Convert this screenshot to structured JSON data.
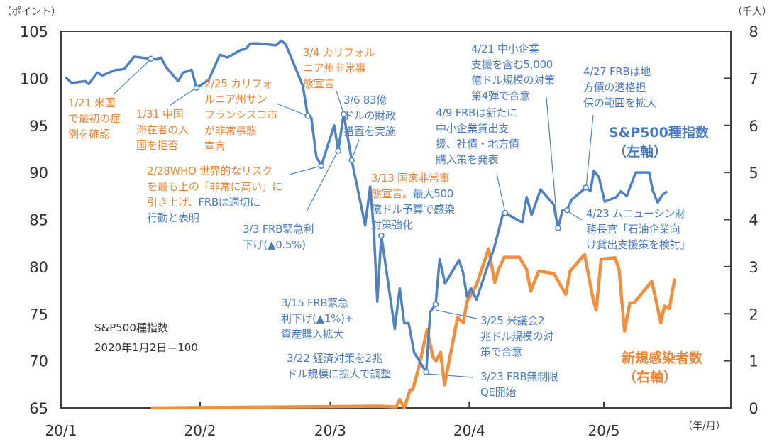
{
  "colors": {
    "sp500": "#4F81C7",
    "cases": "#F28E3C",
    "text_blue": "#4A7CC2",
    "text_orange": "#EE8535",
    "axis": "#404040"
  },
  "units": {
    "left": "（ポイント）",
    "right": "（千人）",
    "x": "（年/月）"
  },
  "series_labels": {
    "sp500": [
      "S&P500種指数",
      "（左軸）"
    ],
    "cases": [
      "新規感染者数",
      "（右軸）"
    ]
  },
  "note": [
    "S&P500種指数",
    "2020年1月2日＝100"
  ],
  "annotations": [
    {
      "id": "a0121",
      "marker_day": 20,
      "lines": [
        [
          {
            "t": "1/21 米国",
            "c": "orange"
          }
        ],
        [
          {
            "t": "で最初の症",
            "c": "orange"
          }
        ],
        [
          {
            "t": "例を確認",
            "c": "orange"
          }
        ]
      ]
    },
    {
      "id": "a0131",
      "marker_day": 30.2,
      "lines": [
        [
          {
            "t": "1/31 中国",
            "c": "orange"
          }
        ],
        [
          {
            "t": "滞在者の入",
            "c": "orange"
          }
        ],
        [
          {
            "t": "国を拒否",
            "c": "orange"
          }
        ]
      ]
    },
    {
      "id": "a0225",
      "marker_day": 55,
      "lines": [
        [
          {
            "t": "2/25 カリフォ",
            "c": "orange"
          }
        ],
        [
          {
            "t": "ルニア州サン",
            "c": "orange"
          }
        ],
        [
          {
            "t": "フランシスコ市",
            "c": "orange"
          }
        ],
        [
          {
            "t": "が非常事態",
            "c": "orange"
          }
        ],
        [
          {
            "t": "宣言",
            "c": "orange"
          }
        ]
      ]
    },
    {
      "id": "a0228",
      "marker_day": 58,
      "lines": [
        [
          {
            "t": "2/28WHO 世界的なリスク",
            "c": "orange"
          }
        ],
        [
          {
            "t": "を最も上の「非常に高い」に",
            "c": "orange"
          }
        ],
        [
          {
            "t": "引き上げ、",
            "c": "orange"
          },
          {
            "t": "FRBは適切に",
            "c": "blue"
          }
        ],
        [
          {
            "t": "行動と表明",
            "c": "blue"
          }
        ]
      ]
    },
    {
      "id": "a0303",
      "marker_day": 61.8,
      "lines": [
        [
          {
            "t": "3/3 FRB緊急利",
            "c": "blue"
          }
        ],
        [
          {
            "t": "下げ(▲0.5%)",
            "c": "blue"
          }
        ]
      ]
    },
    {
      "id": "a0304",
      "marker_day": 63,
      "lines": [
        [
          {
            "t": "3/4 カリフォル",
            "c": "orange"
          }
        ],
        [
          {
            "t": "ニア州非常事",
            "c": "orange"
          }
        ],
        [
          {
            "t": "態宣言",
            "c": "orange"
          }
        ]
      ]
    },
    {
      "id": "a0306",
      "marker_day": 64.8,
      "lines": [
        [
          {
            "t": "3/6 83億",
            "c": "blue"
          }
        ],
        [
          {
            "t": "ドルの財政",
            "c": "blue"
          }
        ],
        [
          {
            "t": "措置を実施",
            "c": "blue"
          }
        ]
      ]
    },
    {
      "id": "a0313",
      "marker_day": 71.4,
      "lines": [
        [
          {
            "t": "3/13 国家非常事",
            "c": "orange"
          }
        ],
        [
          {
            "t": "態宣言。",
            "c": "orange"
          },
          {
            "t": "最大500",
            "c": "blue"
          }
        ],
        [
          {
            "t": "億ドル予算で感染",
            "c": "blue"
          }
        ],
        [
          {
            "t": "対策強化",
            "c": "blue"
          }
        ]
      ]
    },
    {
      "id": "a0315",
      "lines": [
        [
          {
            "t": "3/15 FRB緊急",
            "c": "blue"
          }
        ],
        [
          {
            "t": "利下げ(▲1%)+",
            "c": "blue"
          }
        ],
        [
          {
            "t": "資産購入拡大",
            "c": "blue"
          }
        ]
      ]
    },
    {
      "id": "a0322",
      "lines": [
        [
          {
            "t": "3/22 経済対策を2兆",
            "c": "blue"
          }
        ],
        [
          {
            "t": "ドル規模に拡大で調整",
            "c": "blue"
          }
        ]
      ]
    },
    {
      "id": "a0323",
      "marker_day": 81.4,
      "lines": [
        [
          {
            "t": "3/23 FRB無制限",
            "c": "blue"
          }
        ],
        [
          {
            "t": "QE開始",
            "c": "blue"
          }
        ]
      ]
    },
    {
      "id": "a0325",
      "marker_day": 83.5,
      "lines": [
        [
          {
            "t": "3/25 米議会2",
            "c": "blue"
          }
        ],
        [
          {
            "t": "兆ドル規模の対",
            "c": "blue"
          }
        ],
        [
          {
            "t": "策で合意",
            "c": "blue"
          }
        ]
      ]
    },
    {
      "id": "a0409",
      "marker_day": 99,
      "lines": [
        [
          {
            "t": "4/9 FRBは新たに",
            "c": "blue"
          }
        ],
        [
          {
            "t": "中小企業貸出支",
            "c": "blue"
          }
        ],
        [
          {
            "t": "援、社債・地方債",
            "c": "blue"
          }
        ],
        [
          {
            "t": "購入策を発表",
            "c": "blue"
          }
        ]
      ]
    },
    {
      "id": "a0421",
      "marker_day": 110.8,
      "lines": [
        [
          {
            "t": "4/21 中小企業",
            "c": "blue"
          }
        ],
        [
          {
            "t": "支援を含む5,000",
            "c": "blue"
          }
        ],
        [
          {
            "t": "億ドル規模の対策",
            "c": "blue"
          }
        ],
        [
          {
            "t": "第4弾で合意",
            "c": "blue"
          }
        ]
      ]
    },
    {
      "id": "a0423",
      "marker_day": 112.8,
      "lines": [
        [
          {
            "t": "4/23 ムニューシン財",
            "c": "blue"
          }
        ],
        [
          {
            "t": "務長官「石油企業向",
            "c": "blue"
          }
        ],
        [
          {
            "t": "け貸出支援策を検討」",
            "c": "blue"
          }
        ]
      ]
    },
    {
      "id": "a0427",
      "marker_day": 117,
      "lines": [
        [
          {
            "t": "4/27 FRBは地",
            "c": "blue"
          }
        ],
        [
          {
            "t": "方債の適格担",
            "c": "blue"
          }
        ],
        [
          {
            "t": "保の範囲を拡大",
            "c": "blue"
          }
        ]
      ]
    }
  ],
  "chart_data": {
    "type": "line",
    "title": "",
    "xlabel": "（年/月）",
    "x_unit": "days since 2020-01-01",
    "x_ticks": [
      {
        "day": 0,
        "label": "20/1"
      },
      {
        "day": 31,
        "label": "20/2"
      },
      {
        "day": 60,
        "label": "20/3"
      },
      {
        "day": 91,
        "label": "20/4"
      },
      {
        "day": 121,
        "label": "20/5"
      }
    ],
    "xlim": [
      0,
      149
    ],
    "y_left": {
      "label": "（ポイント）",
      "ylim": [
        65,
        105
      ],
      "ticks": [
        65,
        70,
        75,
        80,
        85,
        90,
        95,
        100,
        105
      ]
    },
    "y_right": {
      "label": "（千人）",
      "ylim": [
        0,
        8
      ],
      "ticks": [
        0,
        1,
        2,
        3,
        4,
        5,
        6,
        7,
        8
      ]
    },
    "grid": false,
    "series": [
      {
        "name": "S&P500種指数（左軸）",
        "axis": "left",
        "points": [
          [
            1,
            100.1
          ],
          [
            2.4,
            99.5
          ],
          [
            5.4,
            99.7
          ],
          [
            6.2,
            99.4
          ],
          [
            8.1,
            100.6
          ],
          [
            9.2,
            100.3
          ],
          [
            12.2,
            100.9
          ],
          [
            13,
            100.9
          ],
          [
            14.1,
            101
          ],
          [
            16.3,
            102.3
          ],
          [
            21.2,
            102
          ],
          [
            22.3,
            102.2
          ],
          [
            23.4,
            101.2
          ],
          [
            26.1,
            99.7
          ],
          [
            27.2,
            100.6
          ],
          [
            29.1,
            100.9
          ],
          [
            30.2,
            99.0
          ],
          [
            32.9,
            99.8
          ],
          [
            35.4,
            102.5
          ],
          [
            37.1,
            102.2
          ],
          [
            40,
            103
          ],
          [
            41.1,
            103.1
          ],
          [
            42.2,
            103.7
          ],
          [
            44.1,
            103.7
          ],
          [
            47.9,
            103.5
          ],
          [
            49.1,
            104
          ],
          [
            50.1,
            103.6
          ],
          [
            53.9,
            99.2
          ],
          [
            55,
            96
          ],
          [
            55.8,
            95.8
          ],
          [
            56.9,
            91.7
          ],
          [
            58,
            90.7
          ],
          [
            60.9,
            95
          ],
          [
            61.8,
            92.3
          ],
          [
            63,
            96.2
          ],
          [
            64.8,
            91.3
          ],
          [
            67.8,
            84.4
          ],
          [
            68.9,
            88.5
          ],
          [
            69.7,
            84.1
          ],
          [
            70.5,
            76.3
          ],
          [
            71.4,
            83.3
          ],
          [
            74.4,
            73.4
          ],
          [
            75.5,
            77.7
          ],
          [
            76.5,
            74
          ],
          [
            77.5,
            74
          ],
          [
            78.7,
            70.9
          ],
          [
            81.4,
            68.8
          ],
          [
            82.3,
            75.2
          ],
          [
            83.5,
            76
          ],
          [
            84.4,
            80.8
          ],
          [
            85.6,
            78.2
          ],
          [
            88.7,
            80.7
          ],
          [
            89.6,
            79.4
          ],
          [
            90.5,
            76.8
          ],
          [
            91.4,
            77.7
          ],
          [
            92.6,
            76.5
          ],
          [
            95,
            79.9
          ],
          [
            96.5,
            81.9
          ],
          [
            98.5,
            85.6
          ],
          [
            99,
            85.7
          ],
          [
            102.8,
            84.7
          ],
          [
            103.8,
            87.4
          ],
          [
            104.9,
            85.5
          ],
          [
            106.9,
            88.2
          ],
          [
            109.8,
            86.6
          ],
          [
            110.8,
            84.1
          ],
          [
            111.8,
            86
          ],
          [
            112.8,
            86
          ],
          [
            113.8,
            87.1
          ],
          [
            117,
            88.4
          ],
          [
            118,
            88
          ],
          [
            118.8,
            90.2
          ],
          [
            119.9,
            89.5
          ],
          [
            121.2,
            86.9
          ],
          [
            123.8,
            87.4
          ],
          [
            124.8,
            88
          ],
          [
            126.1,
            87.5
          ],
          [
            128.1,
            90
          ],
          [
            131.1,
            90
          ],
          [
            131.9,
            88.1
          ],
          [
            133,
            86.8
          ],
          [
            134,
            87.6
          ],
          [
            135.1,
            88
          ]
        ]
      },
      {
        "name": "新規感染者数（右軸）",
        "axis": "right",
        "points": [
          [
            20,
            0
          ],
          [
            68,
            0.035
          ],
          [
            71.4,
            0.035
          ],
          [
            74.7,
            0.02
          ],
          [
            75.5,
            0.18
          ],
          [
            76.5,
            0
          ],
          [
            77.8,
            0.38
          ],
          [
            78.4,
            0.39
          ],
          [
            79.8,
            0.88
          ],
          [
            81.6,
            1.66
          ],
          [
            82.9,
            1.08
          ],
          [
            83.6,
            1.0
          ],
          [
            84.6,
            1.18
          ],
          [
            85.5,
            0.49
          ],
          [
            88.4,
            1.93
          ],
          [
            89,
            1.86
          ],
          [
            89.7,
            1.82
          ],
          [
            90.5,
            2.26
          ],
          [
            92.6,
            2.61
          ],
          [
            95.3,
            3.38
          ],
          [
            96.7,
            2.66
          ],
          [
            97.5,
            2.94
          ],
          [
            98.8,
            3.2
          ],
          [
            102.2,
            3.2
          ],
          [
            103.8,
            2.94
          ],
          [
            104.7,
            2.48
          ],
          [
            106.5,
            2.91
          ],
          [
            109.9,
            2.85
          ],
          [
            112.5,
            2.41
          ],
          [
            113.5,
            2.91
          ],
          [
            116.7,
            3.26
          ],
          [
            118.7,
            2.26
          ],
          [
            119.3,
            2.08
          ],
          [
            120.4,
            3.16
          ],
          [
            123.5,
            3.19
          ],
          [
            124.4,
            2.94
          ],
          [
            125.6,
            1.63
          ],
          [
            126.8,
            2.23
          ],
          [
            127.8,
            2.24
          ],
          [
            131.7,
            2.69
          ],
          [
            133.7,
            1.81
          ],
          [
            134.5,
            2.16
          ],
          [
            135.6,
            2.11
          ],
          [
            136.8,
            2.75
          ]
        ]
      }
    ]
  }
}
